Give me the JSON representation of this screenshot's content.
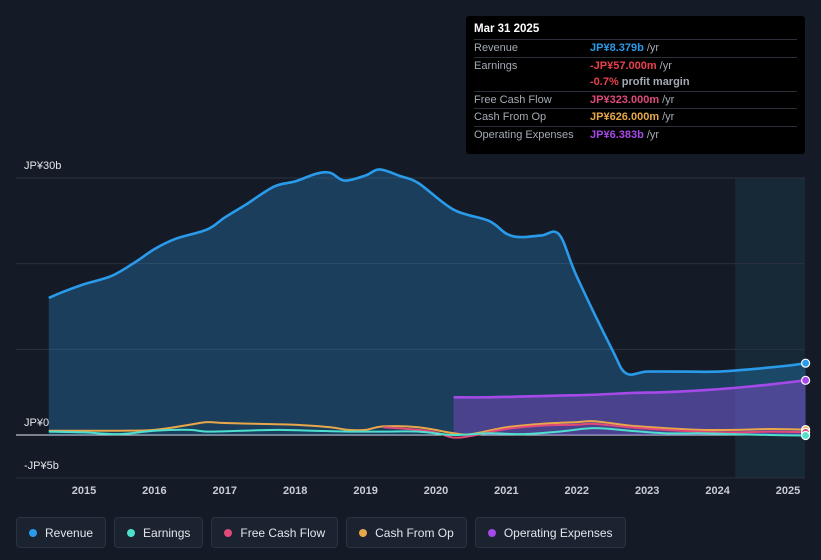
{
  "chart_data": {
    "type": "area",
    "y_axis": {
      "min": -5,
      "max": 30,
      "unit": "JP¥ billions",
      "tick_labels": [
        "JP¥30b",
        "JP¥0",
        "-JP¥5b"
      ]
    },
    "x_axis": {
      "tick_labels": [
        "2015",
        "2016",
        "2017",
        "2018",
        "2019",
        "2020",
        "2021",
        "2022",
        "2023",
        "2024",
        "2025"
      ]
    },
    "series": [
      {
        "name": "Revenue",
        "color": "#2a9bea",
        "fill": true,
        "points": [
          [
            2014.5,
            16
          ],
          [
            2014.7,
            16.7
          ],
          [
            2015.0,
            17.6
          ],
          [
            2015.4,
            18.6
          ],
          [
            2015.75,
            20.3
          ],
          [
            2016.0,
            21.7
          ],
          [
            2016.3,
            22.9
          ],
          [
            2016.75,
            24
          ],
          [
            2017.0,
            25.4
          ],
          [
            2017.3,
            26.9
          ],
          [
            2017.7,
            29
          ],
          [
            2018.0,
            29.6
          ],
          [
            2018.3,
            30.5
          ],
          [
            2018.5,
            30.6
          ],
          [
            2018.7,
            29.7
          ],
          [
            2019.0,
            30.3
          ],
          [
            2019.2,
            31
          ],
          [
            2019.5,
            30.2
          ],
          [
            2019.75,
            29.4
          ],
          [
            2020.25,
            26.3
          ],
          [
            2020.75,
            25
          ],
          [
            2021.0,
            23.5
          ],
          [
            2021.2,
            23.1
          ],
          [
            2021.5,
            23.3
          ],
          [
            2021.75,
            23.4
          ],
          [
            2022.0,
            18.5
          ],
          [
            2022.5,
            10
          ],
          [
            2022.7,
            7.2
          ],
          [
            2023.0,
            7.4
          ],
          [
            2023.5,
            7.4
          ],
          [
            2024.0,
            7.4
          ],
          [
            2024.5,
            7.7
          ],
          [
            2025.0,
            8.1
          ],
          [
            2025.25,
            8.38
          ]
        ]
      },
      {
        "name": "Operating Expenses",
        "color": "#a54ae8",
        "fill": true,
        "points": [
          [
            2020.25,
            4.4
          ],
          [
            2020.75,
            4.4
          ],
          [
            2021.25,
            4.5
          ],
          [
            2021.75,
            4.6
          ],
          [
            2022.25,
            4.7
          ],
          [
            2022.75,
            4.9
          ],
          [
            2023.25,
            5.0
          ],
          [
            2023.75,
            5.2
          ],
          [
            2024.25,
            5.5
          ],
          [
            2024.75,
            5.9
          ],
          [
            2025.25,
            6.383
          ]
        ]
      },
      {
        "name": "Cash From Op",
        "color": "#e8a84a",
        "fill": false,
        "points": [
          [
            2014.5,
            0.5
          ],
          [
            2015.0,
            0.5
          ],
          [
            2015.5,
            0.5
          ],
          [
            2016.0,
            0.6
          ],
          [
            2016.5,
            1.2
          ],
          [
            2016.75,
            1.5
          ],
          [
            2017.0,
            1.4
          ],
          [
            2017.5,
            1.3
          ],
          [
            2018.0,
            1.2
          ],
          [
            2018.5,
            0.9
          ],
          [
            2018.75,
            0.6
          ],
          [
            2019.0,
            0.6
          ],
          [
            2019.25,
            1.0
          ],
          [
            2019.75,
            0.9
          ],
          [
            2020.25,
            0.2
          ],
          [
            2020.5,
            0.1
          ],
          [
            2021.0,
            0.9
          ],
          [
            2021.5,
            1.3
          ],
          [
            2022.0,
            1.5
          ],
          [
            2022.25,
            1.6
          ],
          [
            2022.75,
            1.1
          ],
          [
            2023.25,
            0.8
          ],
          [
            2023.75,
            0.6
          ],
          [
            2024.25,
            0.6
          ],
          [
            2024.75,
            0.7
          ],
          [
            2025.25,
            0.626
          ]
        ]
      },
      {
        "name": "Free Cash Flow",
        "color": "#e04a7a",
        "fill": false,
        "points": [
          [
            2019.25,
            0.9
          ],
          [
            2019.75,
            0.6
          ],
          [
            2020.0,
            0.3
          ],
          [
            2020.25,
            -0.3
          ],
          [
            2020.5,
            -0.1
          ],
          [
            2021.0,
            0.7
          ],
          [
            2021.5,
            1.1
          ],
          [
            2022.0,
            1.2
          ],
          [
            2022.25,
            1.3
          ],
          [
            2022.75,
            0.9
          ],
          [
            2023.25,
            0.6
          ],
          [
            2023.75,
            0.4
          ],
          [
            2024.25,
            0.3
          ],
          [
            2024.75,
            0.4
          ],
          [
            2025.25,
            0.323
          ]
        ]
      },
      {
        "name": "Earnings",
        "color": "#4ee0cd",
        "fill": false,
        "points": [
          [
            2014.5,
            0.4
          ],
          [
            2015.0,
            0.3
          ],
          [
            2015.5,
            0.1
          ],
          [
            2016.0,
            0.5
          ],
          [
            2016.5,
            0.6
          ],
          [
            2016.75,
            0.4
          ],
          [
            2017.25,
            0.5
          ],
          [
            2017.75,
            0.6
          ],
          [
            2018.25,
            0.5
          ],
          [
            2018.75,
            0.4
          ],
          [
            2019.25,
            0.4
          ],
          [
            2019.75,
            0.4
          ],
          [
            2020.25,
            0.0
          ],
          [
            2020.75,
            0.2
          ],
          [
            2021.25,
            0.1
          ],
          [
            2021.75,
            0.4
          ],
          [
            2022.25,
            0.8
          ],
          [
            2022.75,
            0.5
          ],
          [
            2023.25,
            0.2
          ],
          [
            2023.75,
            0.2
          ],
          [
            2024.25,
            0.1
          ],
          [
            2024.75,
            0.0
          ],
          [
            2025.25,
            -0.057
          ]
        ]
      }
    ],
    "forecast_region_start": 2024.25
  },
  "tooltip": {
    "date": "Mar 31 2025",
    "rows": [
      {
        "label": "Revenue",
        "value": "JP¥8.379b",
        "unit": "/yr",
        "color": "#2a9bea"
      },
      {
        "label": "Earnings",
        "value": "-JP¥57.000m",
        "unit": "/yr",
        "color": "#e8414b"
      },
      {
        "label": "",
        "value": "-0.7%",
        "unit": "profit margin",
        "color": "#e8414b"
      },
      {
        "label": "Free Cash Flow",
        "value": "JP¥323.000m",
        "unit": "/yr",
        "color": "#e04a7a"
      },
      {
        "label": "Cash From Op",
        "value": "JP¥626.000m",
        "unit": "/yr",
        "color": "#e8a84a"
      },
      {
        "label": "Operating Expenses",
        "value": "JP¥6.383b",
        "unit": "/yr",
        "color": "#a54ae8"
      }
    ]
  },
  "legend": [
    {
      "label": "Revenue",
      "color": "#2a9bea"
    },
    {
      "label": "Earnings",
      "color": "#4ee0cd"
    },
    {
      "label": "Free Cash Flow",
      "color": "#e04a7a"
    },
    {
      "label": "Cash From Op",
      "color": "#e8a84a"
    },
    {
      "label": "Operating Expenses",
      "color": "#a54ae8"
    }
  ]
}
